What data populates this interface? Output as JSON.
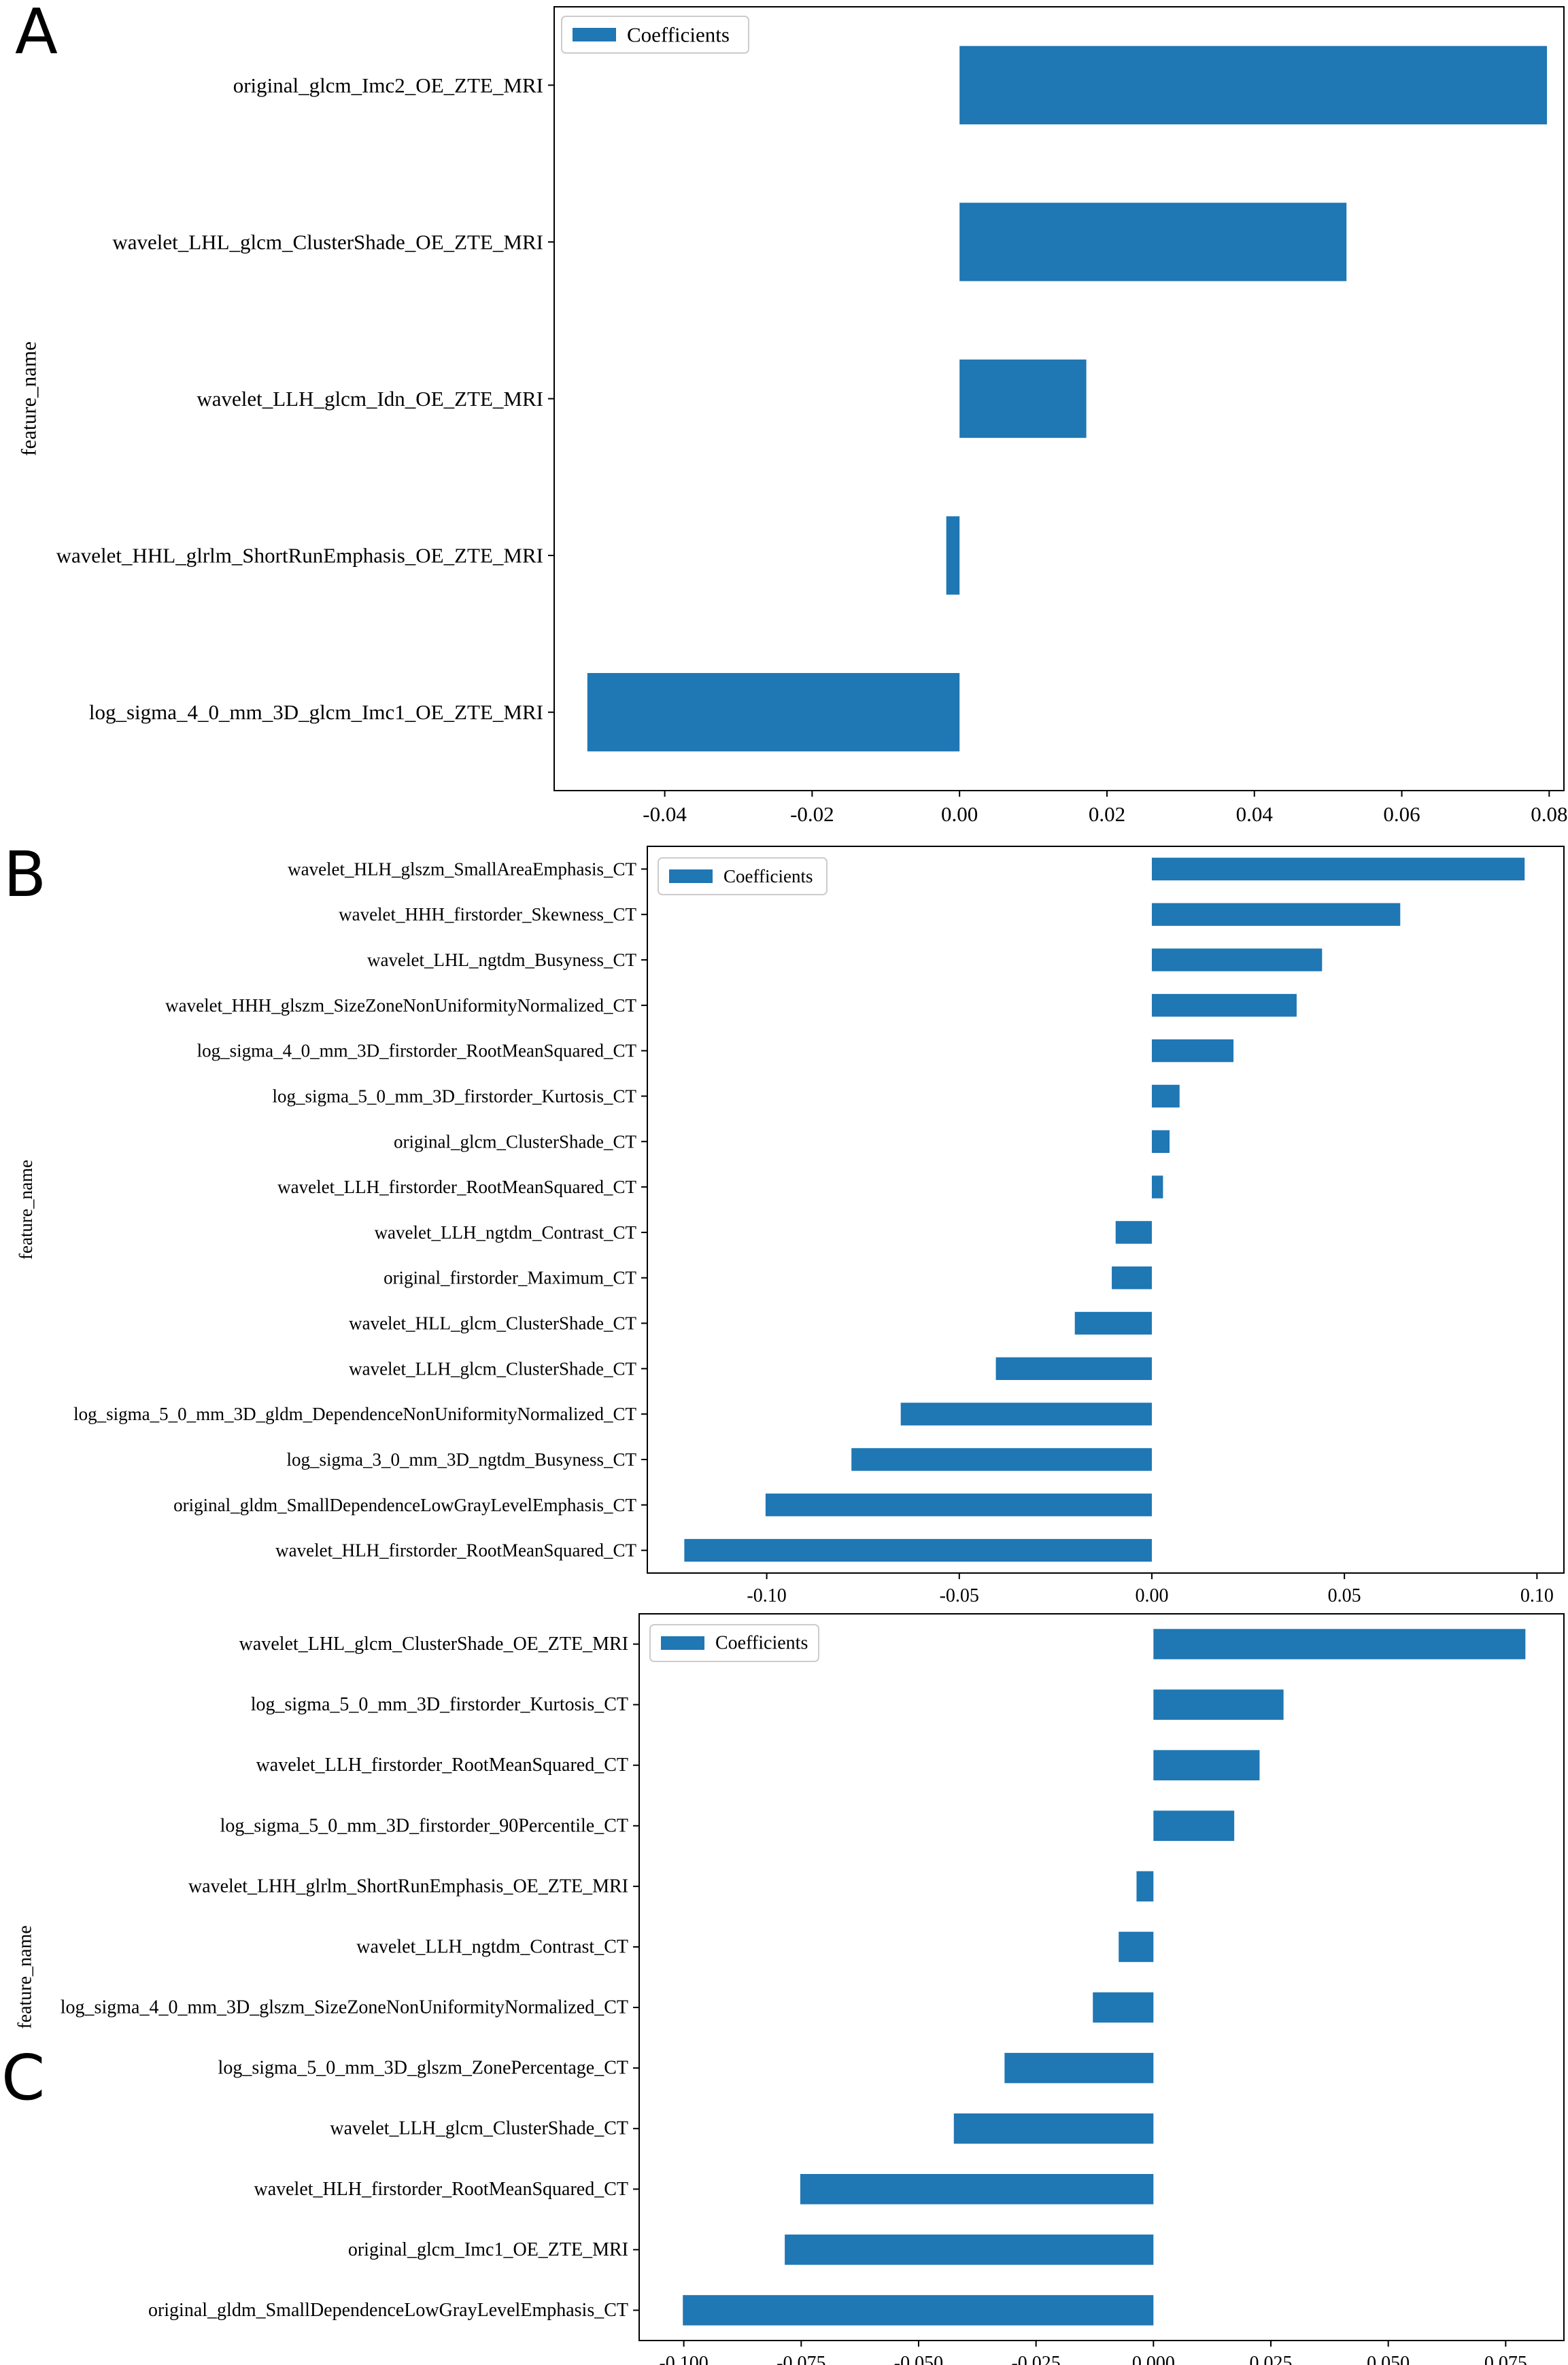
{
  "colors": {
    "bar": "#1f77b4",
    "axis": "#000000",
    "background": "#ffffff",
    "legend_border": "#cccccc"
  },
  "chart_data": [
    {
      "panel": "A",
      "type": "bar",
      "orientation": "horizontal",
      "ylabel": "feature_name",
      "legend": "Coefficients",
      "legend_position": "top-left",
      "xlim": [
        -0.055,
        0.082
      ],
      "xticks": [
        -0.04,
        -0.02,
        0.0,
        0.02,
        0.04,
        0.06,
        0.08
      ],
      "xtick_labels": [
        "-0.04",
        "-0.02",
        "0.00",
        "0.02",
        "0.04",
        "0.06",
        "0.08"
      ],
      "categories": [
        "original_glcm_Imc2_OE_ZTE_MRI",
        "wavelet_LHL_glcm_ClusterShade_OE_ZTE_MRI",
        "wavelet_LLH_glcm_Idn_OE_ZTE_MRI",
        "wavelet_HHL_glrlm_ShortRunEmphasis_OE_ZTE_MRI",
        "log_sigma_4_0_mm_3D_glcm_Imc1_OE_ZTE_MRI"
      ],
      "values": [
        0.0797,
        0.0525,
        0.0172,
        -0.0018,
        -0.0505
      ]
    },
    {
      "panel": "B",
      "type": "bar",
      "orientation": "horizontal",
      "ylabel": "feature_name",
      "legend": "Coefficients",
      "legend_position": "top-left",
      "xlim": [
        -0.131,
        0.107
      ],
      "xticks": [
        -0.1,
        -0.05,
        0.0,
        0.05,
        0.1
      ],
      "xtick_labels": [
        "-0.10",
        "-0.05",
        "0.00",
        "0.05",
        "0.10"
      ],
      "categories": [
        "wavelet_HLH_glszm_SmallAreaEmphasis_CT",
        "wavelet_HHH_firstorder_Skewness_CT",
        "wavelet_LHL_ngtdm_Busyness_CT",
        "wavelet_HHH_glszm_SizeZoneNonUniformityNormalized_CT",
        "log_sigma_4_0_mm_3D_firstorder_RootMeanSquared_CT",
        "log_sigma_5_0_mm_3D_firstorder_Kurtosis_CT",
        "original_glcm_ClusterShade_CT",
        "wavelet_LLH_firstorder_RootMeanSquared_CT",
        "wavelet_LLH_ngtdm_Contrast_CT",
        "original_firstorder_Maximum_CT",
        "wavelet_HLL_glcm_ClusterShade_CT",
        "wavelet_LLH_glcm_ClusterShade_CT",
        "log_sigma_5_0_mm_3D_gldm_DependenceNonUniformityNormalized_CT",
        "log_sigma_3_0_mm_3D_ngtdm_Busyness_CT",
        "original_gldm_SmallDependenceLowGrayLevelEmphasis_CT",
        "wavelet_HLH_firstorder_RootMeanSquared_CT"
      ],
      "values": [
        0.0968,
        0.0645,
        0.0442,
        0.0376,
        0.0212,
        0.0072,
        0.0046,
        0.0029,
        -0.0094,
        -0.0104,
        -0.02,
        -0.0405,
        -0.0652,
        -0.078,
        -0.1003,
        -0.1214
      ]
    },
    {
      "panel": "C",
      "type": "bar",
      "orientation": "horizontal",
      "ylabel": "feature_name",
      "legend": "Coefficients",
      "legend_position": "top-left",
      "xlim": [
        -0.1095,
        0.0874
      ],
      "xticks": [
        -0.1,
        -0.075,
        -0.05,
        -0.025,
        0.0,
        0.025,
        0.05,
        0.075
      ],
      "xtick_labels": [
        "-0.100",
        "-0.075",
        "-0.050",
        "-0.025",
        "0.000",
        "0.025",
        "0.050",
        "0.075"
      ],
      "categories": [
        "wavelet_LHL_glcm_ClusterShade_OE_ZTE_MRI",
        "log_sigma_5_0_mm_3D_firstorder_Kurtosis_CT",
        "wavelet_LLH_firstorder_RootMeanSquared_CT",
        "log_sigma_5_0_mm_3D_firstorder_90Percentile_CT",
        "wavelet_LHH_glrlm_ShortRunEmphasis_OE_ZTE_MRI",
        "wavelet_LLH_ngtdm_Contrast_CT",
        "log_sigma_4_0_mm_3D_glszm_SizeZoneNonUniformityNormalized_CT",
        "log_sigma_5_0_mm_3D_glszm_ZonePercentage_CT",
        "wavelet_LLH_glcm_ClusterShade_CT",
        "wavelet_HLH_firstorder_RootMeanSquared_CT",
        "original_glcm_Imc1_OE_ZTE_MRI",
        "original_gldm_SmallDependenceLowGrayLevelEmphasis_CT"
      ],
      "values": [
        0.0792,
        0.0277,
        0.0226,
        0.0172,
        -0.0036,
        -0.0074,
        -0.0129,
        -0.0317,
        -0.0425,
        -0.0752,
        -0.0785,
        -0.1002
      ]
    }
  ]
}
